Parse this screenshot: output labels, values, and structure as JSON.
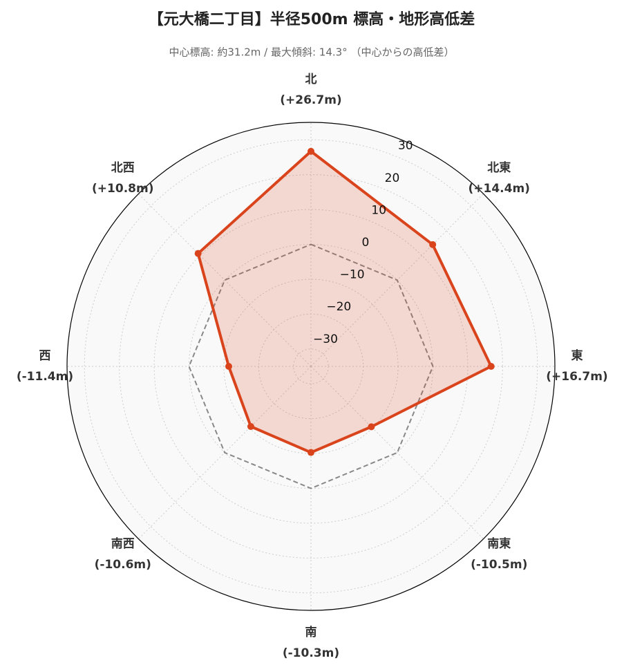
{
  "chart_data": {
    "type": "radar",
    "title": "【元大橋二丁目】半径500m 標高・地形高低差",
    "subtitle": "中心標高: 約31.2m / 最大傾斜: 14.3° （中心からの高低差）",
    "categories": [
      "北",
      "北東",
      "東",
      "南東",
      "南",
      "南西",
      "西",
      "北西"
    ],
    "values": [
      26.7,
      14.4,
      16.7,
      -10.5,
      -10.3,
      -10.6,
      -11.4,
      10.8
    ],
    "value_labels": [
      "(+26.7m)",
      "(+14.4m)",
      "(+16.7m)",
      "(-10.5m)",
      "(-10.3m)",
      "(-10.6m)",
      "(-11.4m)",
      "(+10.8m)"
    ],
    "color": "#d9441c",
    "ylim": [
      -35,
      35
    ],
    "yticks": [
      {
        "value": -30,
        "label": "−30"
      },
      {
        "value": -20,
        "label": "−20"
      },
      {
        "value": -10,
        "label": "−10"
      },
      0,
      10,
      20,
      30
    ],
    "baseline": 0,
    "grid": true
  }
}
